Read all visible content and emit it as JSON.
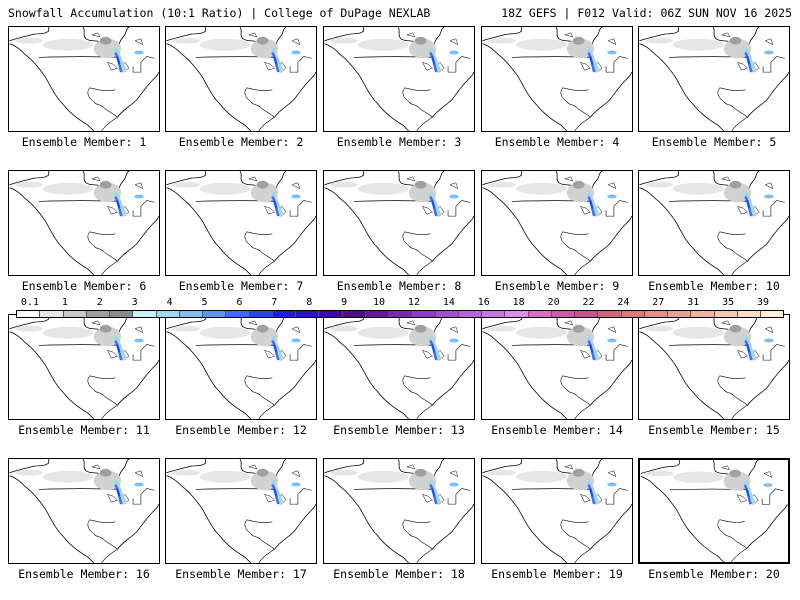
{
  "header": {
    "title": "Snowfall Accumulation (10:1 Ratio) | College of DuPage NEXLAB",
    "run_info": "18Z GEFS | F012 Valid: 06Z SUN NOV 16 2025"
  },
  "members": [
    {
      "label": "Ensemble Member: 1"
    },
    {
      "label": "Ensemble Member: 2"
    },
    {
      "label": "Ensemble Member: 3"
    },
    {
      "label": "Ensemble Member: 4"
    },
    {
      "label": "Ensemble Member: 5"
    },
    {
      "label": "Ensemble Member: 6"
    },
    {
      "label": "Ensemble Member: 7"
    },
    {
      "label": "Ensemble Member: 8"
    },
    {
      "label": "Ensemble Member: 9"
    },
    {
      "label": "Ensemble Member: 10"
    },
    {
      "label": "Ensemble Member: 11"
    },
    {
      "label": "Ensemble Member: 12"
    },
    {
      "label": "Ensemble Member: 13"
    },
    {
      "label": "Ensemble Member: 14"
    },
    {
      "label": "Ensemble Member: 15"
    },
    {
      "label": "Ensemble Member: 16"
    },
    {
      "label": "Ensemble Member: 17"
    },
    {
      "label": "Ensemble Member: 18"
    },
    {
      "label": "Ensemble Member: 19"
    },
    {
      "label": "Ensemble Member: 20"
    }
  ],
  "legend": {
    "tick_labels": [
      "0.1",
      "1",
      "2",
      "3",
      "4",
      "5",
      "6",
      "7",
      "8",
      "9",
      "10",
      "12",
      "14",
      "16",
      "18",
      "20",
      "22",
      "24",
      "27",
      "31",
      "35",
      "39"
    ],
    "colors": [
      "#ffffff",
      "#e6e6e6",
      "#c8c8c8",
      "#a0a0a0",
      "#8c8c8c",
      "#c8f0f5",
      "#a0d8f0",
      "#82bef0",
      "#5a96f0",
      "#3c6ef0",
      "#2846e6",
      "#1e1edc",
      "#2814c8",
      "#3c0aa0",
      "#500a8c",
      "#6414a0",
      "#7828b4",
      "#8c3cc8",
      "#a050d2",
      "#b464dc",
      "#c878e6",
      "#dc8cf0",
      "#dc6ec8",
      "#d25aaa",
      "#c8508c",
      "#d2647d",
      "#dc7882",
      "#e68c8c",
      "#eba096",
      "#f0b4a0",
      "#f5c8b4",
      "#fadcc8",
      "#fff0dc"
    ]
  }
}
